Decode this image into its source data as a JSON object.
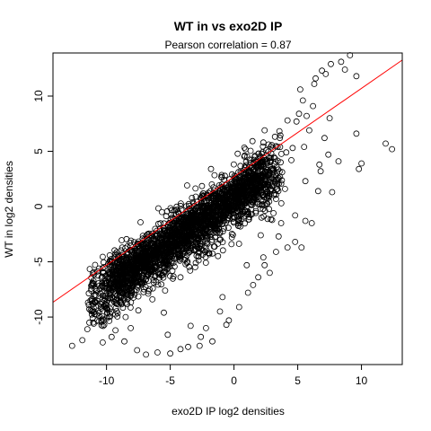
{
  "chart_data": {
    "type": "scatter",
    "title": "WT in vs exo2D IP",
    "subtitle": "Pearson correlation =  0.87",
    "xlabel": "exo2D IP log2 densities",
    "ylabel": "WT in log2 densities",
    "xlim": [
      -14.2,
      13.2
    ],
    "ylim": [
      -14.3,
      13.9
    ],
    "xticks": [
      -10,
      -5,
      0,
      5,
      10
    ],
    "xtick_labels": [
      "-10",
      "-5",
      "0",
      "5",
      "10"
    ],
    "yticks": [
      -10,
      -5,
      0,
      5,
      10
    ],
    "ytick_labels": [
      "-10",
      "-5",
      "0",
      "5",
      "10"
    ],
    "grid": false,
    "fit_line": {
      "intercept": 2.7,
      "slope": 0.8,
      "color": "#ff0000"
    },
    "point_color": "#000000",
    "points": [
      [
        9.1,
        13.7
      ],
      [
        8.4,
        13.1
      ],
      [
        7.6,
        12.9
      ],
      [
        8.7,
        12.4
      ],
      [
        6.9,
        12.3
      ],
      [
        7.2,
        12.0
      ],
      [
        6.4,
        11.6
      ],
      [
        6.3,
        11.1
      ],
      [
        9.6,
        11.8
      ],
      [
        5.2,
        10.6
      ],
      [
        6.2,
        9.1
      ],
      [
        5.1,
        8.4
      ],
      [
        5.7,
        8.2
      ],
      [
        4.9,
        7.7
      ],
      [
        7.5,
        8.0
      ],
      [
        9.6,
        6.6
      ],
      [
        11.9,
        5.7
      ],
      [
        12.4,
        5.2
      ],
      [
        10.0,
        3.9
      ],
      [
        9.8,
        3.4
      ],
      [
        7.4,
        4.7
      ],
      [
        6.8,
        3.2
      ],
      [
        6.6,
        1.4
      ],
      [
        7.7,
        1.3
      ],
      [
        5.6,
        2.3
      ],
      [
        4.5,
        4.2
      ],
      [
        3.1,
        3.3
      ],
      [
        2.4,
        6.9
      ],
      [
        2.3,
        5.8
      ],
      [
        3.6,
        6.2
      ],
      [
        4.6,
        5.3
      ],
      [
        5.5,
        5.4
      ],
      [
        4.0,
        1.6
      ],
      [
        3.5,
        -2.7
      ],
      [
        4.8,
        -3.2
      ],
      [
        5.3,
        -3.7
      ],
      [
        2.3,
        -4.6
      ],
      [
        1.5,
        -7.1
      ],
      [
        1.1,
        -7.8
      ],
      [
        -0.4,
        -10.3
      ],
      [
        -0.6,
        -10.7
      ],
      [
        -2.2,
        -11.0
      ],
      [
        -5.5,
        -9.6
      ],
      [
        -6.7,
        -6.1
      ],
      [
        -5.1,
        -4.0
      ],
      [
        -3.2,
        -2.6
      ],
      [
        -4.1,
        -2.8
      ],
      [
        -5.4,
        -3.2
      ],
      [
        -4.0,
        -1.2
      ],
      [
        -2.8,
        -0.8
      ],
      [
        -3.0,
        0.9
      ],
      [
        -1.1,
        1.2
      ],
      [
        0.8,
        3.3
      ],
      [
        -0.4,
        1.9
      ],
      [
        1.9,
        3.6
      ],
      [
        0.9,
        5.2
      ],
      [
        -1.8,
        3.4
      ],
      [
        0.2,
        1.4
      ],
      [
        -12.7,
        -12.6
      ],
      [
        -11.9,
        -12.1
      ],
      [
        -11.5,
        -11.1
      ],
      [
        -11.0,
        -10.6
      ],
      [
        -10.6,
        -10.4
      ],
      [
        -10.0,
        -9.2
      ],
      [
        -9.6,
        -8.7
      ],
      [
        -8.9,
        -8.6
      ],
      [
        -8.0,
        -7.7
      ],
      [
        -7.6,
        -5.6
      ],
      [
        -7.3,
        -6.4
      ],
      [
        -8.5,
        -10.0
      ],
      [
        -9.3,
        -11.2
      ],
      [
        -8.6,
        -12.2
      ],
      [
        -7.6,
        -13.0
      ],
      [
        -6.9,
        -13.4
      ],
      [
        -6.0,
        -13.2
      ],
      [
        -5.0,
        -13.3
      ],
      [
        -4.2,
        -12.9
      ],
      [
        -3.6,
        -12.7
      ],
      [
        -2.7,
        -12.6
      ],
      [
        -1.7,
        -12.2
      ],
      [
        -2.6,
        -11.8
      ],
      [
        -1.1,
        -9.5
      ],
      [
        0.4,
        -9.1
      ],
      [
        1.9,
        -6.4
      ],
      [
        2.8,
        -6.0
      ],
      [
        2.4,
        -5.3
      ],
      [
        3.3,
        -4.1
      ],
      [
        4.2,
        -3.7
      ],
      [
        3.7,
        -1.5
      ],
      [
        4.8,
        -0.8
      ],
      [
        5.6,
        -1.3
      ],
      [
        6.1,
        -1.5
      ],
      [
        6.7,
        3.8
      ],
      [
        8.2,
        4.1
      ],
      [
        7.1,
        6.2
      ],
      [
        5.9,
        6.9
      ],
      [
        4.1,
        4.9
      ],
      [
        3.0,
        2.1
      ],
      [
        2.5,
        1.7
      ],
      [
        1.6,
        0.6
      ],
      [
        0.5,
        -1.8
      ],
      [
        -0.2,
        -3.4
      ],
      [
        -2.0,
        -4.2
      ],
      [
        -3.0,
        -5.1
      ],
      [
        -4.2,
        -6.4
      ],
      [
        -5.4,
        -7.6
      ],
      [
        -6.4,
        -8.4
      ],
      [
        -7.5,
        -9.4
      ],
      [
        -8.1,
        -11.0
      ],
      [
        -9.6,
        -11.8
      ],
      [
        -10.3,
        -12.3
      ],
      [
        -5.2,
        -11.6
      ],
      [
        -3.4,
        -10.8
      ],
      [
        -0.9,
        -8.2
      ],
      [
        1.0,
        -5.3
      ],
      [
        2.1,
        -2.6
      ],
      [
        3.1,
        -0.6
      ],
      [
        -6.4,
        -5.8
      ],
      [
        -4.8,
        -4.4
      ],
      [
        -1.9,
        -1.6
      ],
      [
        -0.7,
        0.4
      ],
      [
        1.3,
        2.6
      ],
      [
        2.9,
        4.4
      ],
      [
        4.2,
        7.8
      ],
      [
        5.4,
        9.6
      ]
    ],
    "cloud": [
      {
        "x_from": -11.2,
        "x_to": 3.6,
        "half_width": 2.2,
        "offset": -1.2
      },
      {
        "x_from": -9.5,
        "x_to": 2.4,
        "half_width": 1.3,
        "offset": -0.8
      }
    ]
  }
}
